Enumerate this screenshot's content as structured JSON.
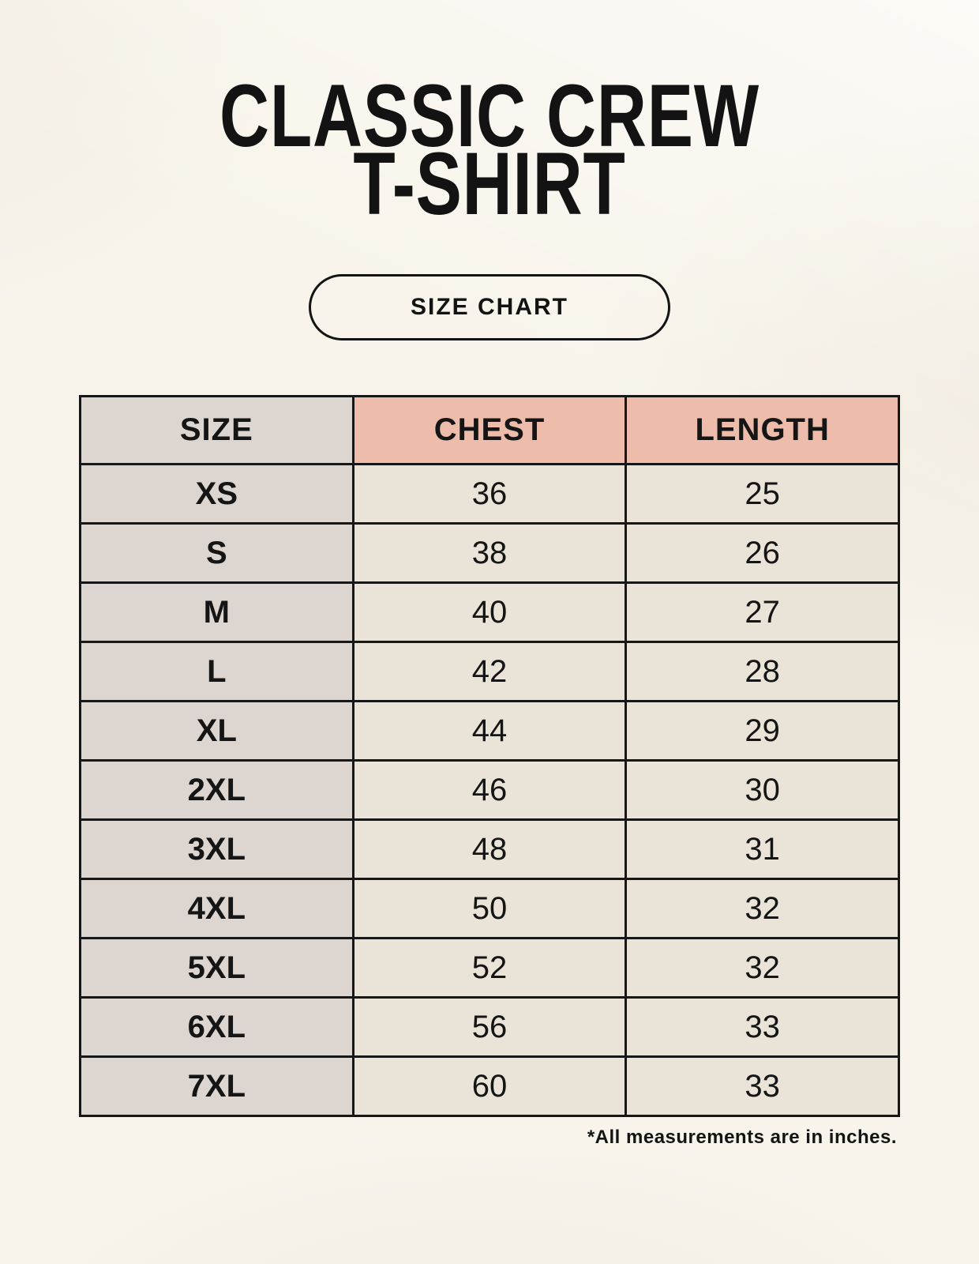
{
  "poster": {
    "title_line1": "CLASSIC CREW",
    "title_line2": "T-SHIRT",
    "badge_label": "SIZE CHART",
    "footnote": "*All measurements are in inches."
  },
  "size_table": {
    "headers": [
      "SIZE",
      "CHEST",
      "LENGTH"
    ],
    "rows": [
      {
        "size": "XS",
        "chest": "36",
        "length": "25"
      },
      {
        "size": "S",
        "chest": "38",
        "length": "26"
      },
      {
        "size": "M",
        "chest": "40",
        "length": "27"
      },
      {
        "size": "L",
        "chest": "42",
        "length": "28"
      },
      {
        "size": "XL",
        "chest": "44",
        "length": "29"
      },
      {
        "size": "2XL",
        "chest": "46",
        "length": "30"
      },
      {
        "size": "3XL",
        "chest": "48",
        "length": "31"
      },
      {
        "size": "4XL",
        "chest": "50",
        "length": "32"
      },
      {
        "size": "5XL",
        "chest": "52",
        "length": "32"
      },
      {
        "size": "6XL",
        "chest": "56",
        "length": "33"
      },
      {
        "size": "7XL",
        "chest": "60",
        "length": "33"
      }
    ]
  },
  "colors": {
    "page_background": "#f8f4eb",
    "size_column_bg": "#ddd5cf",
    "measure_header_bg": "#edbcab",
    "value_cell_bg": "#eae3d7",
    "table_border": "#171717",
    "text": "#151515"
  }
}
